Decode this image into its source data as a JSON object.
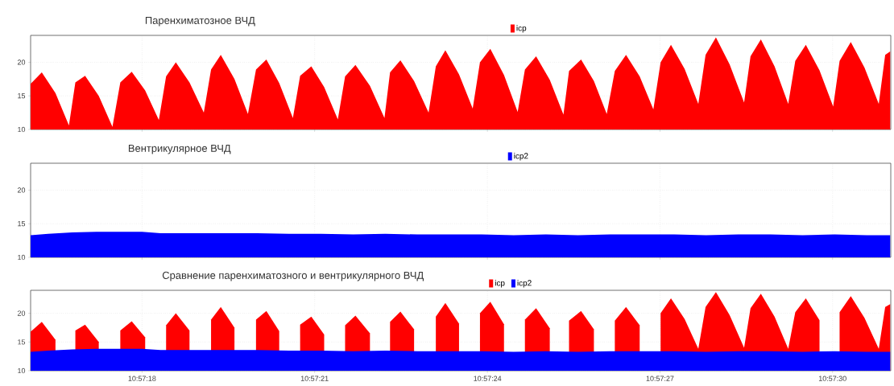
{
  "chart_data": [
    {
      "type": "area",
      "title": "Паренхиматозное ВЧД",
      "legend": "top",
      "grid": true,
      "tick_labels": "y",
      "xlim": [
        10.954462,
        10.958614
      ],
      "ylim": [
        10,
        24
      ],
      "yticks": [
        10,
        15,
        20
      ],
      "xticks": [
        {
          "value": 10.955,
          "label": null
        },
        {
          "value": 10.955833,
          "label": null
        },
        {
          "value": 10.956667,
          "label": null
        },
        {
          "value": 10.9575,
          "label": null
        },
        {
          "value": 10.958333,
          "label": null
        }
      ],
      "series": [
        {
          "name": "icp",
          "color": "#ff0000",
          "x": [
            10.954462,
            10.954516,
            10.954582,
            10.954647,
            10.954678,
            10.954725,
            10.954791,
            10.954857,
            10.954895,
            10.95495,
            10.955015,
            10.955081,
            10.955116,
            10.955163,
            10.955229,
            10.955298,
            10.955333,
            10.95538,
            10.955446,
            10.955511,
            10.95555,
            10.9556,
            10.955662,
            10.955728,
            10.955763,
            10.955817,
            10.955879,
            10.955945,
            10.95598,
            10.95603,
            10.9561,
            10.95617,
            10.956197,
            10.956247,
            10.956313,
            10.956383,
            10.956418,
            10.956464,
            10.95653,
            10.956596,
            10.956631,
            10.956681,
            10.956747,
            10.956813,
            10.956848,
            10.956902,
            10.956968,
            10.957034,
            10.957061,
            10.957119,
            10.957181,
            10.957243,
            10.957282,
            10.957336,
            10.957402,
            10.957468,
            10.957503,
            10.957553,
            10.957619,
            10.957685,
            10.95772,
            10.95777,
            10.957836,
            10.957906,
            10.957937,
            10.957987,
            10.958053,
            10.958119,
            10.958153,
            10.958204,
            10.95827,
            10.958336,
            10.958367,
            10.958421,
            10.958487,
            10.958556,
            10.958587,
            10.958611
          ],
          "values": [
            16.8,
            18.5,
            15.4,
            10.6,
            17.0,
            18.0,
            15.0,
            10.4,
            17.0,
            18.6,
            15.8,
            11.4,
            17.9,
            20.0,
            17.0,
            12.5,
            18.9,
            21.1,
            17.5,
            12.3,
            18.9,
            20.4,
            16.9,
            11.7,
            18.0,
            19.4,
            16.3,
            11.5,
            17.9,
            19.6,
            16.5,
            11.7,
            18.5,
            20.3,
            17.2,
            12.5,
            19.4,
            21.8,
            18.2,
            13.1,
            20.0,
            22.0,
            18.1,
            12.6,
            18.9,
            20.9,
            17.4,
            12.2,
            18.7,
            20.4,
            17.2,
            12.3,
            18.7,
            21.1,
            17.9,
            13.0,
            20.0,
            22.6,
            19.0,
            13.8,
            21.1,
            23.7,
            19.7,
            14.0,
            20.9,
            23.4,
            19.4,
            13.8,
            20.2,
            22.6,
            18.8,
            13.4,
            20.2,
            23.0,
            19.2,
            13.8,
            21.1,
            21.6
          ]
        }
      ]
    },
    {
      "type": "area",
      "title": "Вентрикулярное ВЧД",
      "legend": "top",
      "grid": true,
      "tick_labels": "y",
      "xlim": [
        10.954462,
        10.958614
      ],
      "ylim": [
        10,
        24
      ],
      "yticks": [
        10,
        15,
        20
      ],
      "xticks": [
        {
          "value": 10.955,
          "label": null
        },
        {
          "value": 10.955833,
          "label": null
        },
        {
          "value": 10.956667,
          "label": null
        },
        {
          "value": 10.9575,
          "label": null
        },
        {
          "value": 10.958333,
          "label": null
        }
      ],
      "series": [
        {
          "name": "icp2",
          "color": "#0000ff",
          "x": [
            10.954462,
            10.954547,
            10.954663,
            10.954779,
            10.954895,
            10.955,
            10.955089,
            10.955244,
            10.955399,
            10.955554,
            10.955709,
            10.955864,
            10.956019,
            10.956174,
            10.956329,
            10.956484,
            10.956639,
            10.956794,
            10.956949,
            10.957104,
            10.957259,
            10.957414,
            10.957569,
            10.957723,
            10.957878,
            10.958033,
            10.958188,
            10.958343,
            10.958498,
            10.958611
          ],
          "values": [
            13.3,
            13.5,
            13.7,
            13.8,
            13.8,
            13.8,
            13.6,
            13.6,
            13.6,
            13.6,
            13.5,
            13.5,
            13.4,
            13.5,
            13.4,
            13.4,
            13.4,
            13.3,
            13.4,
            13.3,
            13.4,
            13.4,
            13.4,
            13.3,
            13.4,
            13.4,
            13.3,
            13.4,
            13.3,
            13.3
          ]
        }
      ]
    },
    {
      "type": "area",
      "title": "Сравнение паренхиматозного и вентрикулярного ВЧД",
      "legend": "top",
      "grid": true,
      "xlim": [
        10.954462,
        10.958614
      ],
      "ylim": [
        10,
        24
      ],
      "yticks": [
        10,
        15,
        20
      ],
      "xticks": [
        {
          "value": 10.955,
          "label": "10:57:18"
        },
        {
          "value": 10.955833,
          "label": "10:57:21"
        },
        {
          "value": 10.956667,
          "label": "10:57:24"
        },
        {
          "value": 10.9575,
          "label": "10:57:27"
        },
        {
          "value": 10.958333,
          "label": "10:57:30"
        }
      ],
      "series": [
        {
          "name": "icp",
          "color": "#ff0000",
          "x": [
            10.954462,
            10.954516,
            10.954582,
            10.954647,
            10.954678,
            10.954725,
            10.954791,
            10.954857,
            10.954895,
            10.95495,
            10.955015,
            10.955081,
            10.955116,
            10.955163,
            10.955229,
            10.955298,
            10.955333,
            10.95538,
            10.955446,
            10.955511,
            10.95555,
            10.9556,
            10.955662,
            10.955728,
            10.955763,
            10.955817,
            10.955879,
            10.955945,
            10.95598,
            10.95603,
            10.9561,
            10.95617,
            10.956197,
            10.956247,
            10.956313,
            10.956383,
            10.956418,
            10.956464,
            10.95653,
            10.956596,
            10.956631,
            10.956681,
            10.956747,
            10.956813,
            10.956848,
            10.956902,
            10.956968,
            10.957034,
            10.957061,
            10.957119,
            10.957181,
            10.957243,
            10.957282,
            10.957336,
            10.957402,
            10.957468,
            10.957503,
            10.957553,
            10.957619,
            10.957685,
            10.95772,
            10.95777,
            10.957836,
            10.957906,
            10.957937,
            10.957987,
            10.958053,
            10.958119,
            10.958153,
            10.958204,
            10.95827,
            10.958336,
            10.958367,
            10.958421,
            10.958487,
            10.958556,
            10.958587,
            10.958611
          ],
          "values": [
            16.8,
            18.5,
            15.4,
            null,
            17.0,
            18.0,
            15.0,
            null,
            17.0,
            18.6,
            15.8,
            null,
            17.9,
            20.0,
            17.0,
            null,
            18.9,
            21.1,
            17.5,
            null,
            18.9,
            20.4,
            16.9,
            null,
            18.0,
            19.4,
            16.3,
            null,
            17.9,
            19.6,
            16.5,
            null,
            18.5,
            20.3,
            17.2,
            null,
            19.4,
            21.8,
            18.2,
            null,
            20.0,
            22.0,
            18.1,
            null,
            18.9,
            20.9,
            17.4,
            null,
            18.7,
            20.4,
            17.2,
            null,
            18.7,
            21.1,
            17.9,
            null,
            20.0,
            22.6,
            19.0,
            13.8,
            21.1,
            23.7,
            19.7,
            14.0,
            20.9,
            23.4,
            19.4,
            13.8,
            20.2,
            22.6,
            18.8,
            null,
            20.2,
            23.0,
            19.2,
            13.8,
            21.1,
            21.6
          ]
        },
        {
          "name": "icp2",
          "color": "#0000ff",
          "x": [
            10.954462,
            10.954547,
            10.954663,
            10.954779,
            10.954895,
            10.955,
            10.955089,
            10.955244,
            10.955399,
            10.955554,
            10.955709,
            10.955864,
            10.956019,
            10.956174,
            10.956329,
            10.956484,
            10.956639,
            10.956794,
            10.956949,
            10.957104,
            10.957259,
            10.957414,
            10.957569,
            10.957723,
            10.957878,
            10.958033,
            10.958188,
            10.958343,
            10.958498,
            10.958611
          ],
          "values": [
            13.3,
            13.5,
            13.7,
            13.8,
            13.8,
            13.8,
            13.6,
            13.6,
            13.6,
            13.6,
            13.5,
            13.5,
            13.4,
            13.5,
            13.4,
            13.4,
            13.4,
            13.3,
            13.4,
            13.3,
            13.4,
            13.4,
            13.4,
            13.3,
            13.4,
            13.4,
            13.3,
            13.4,
            13.3,
            13.3
          ]
        }
      ]
    }
  ]
}
